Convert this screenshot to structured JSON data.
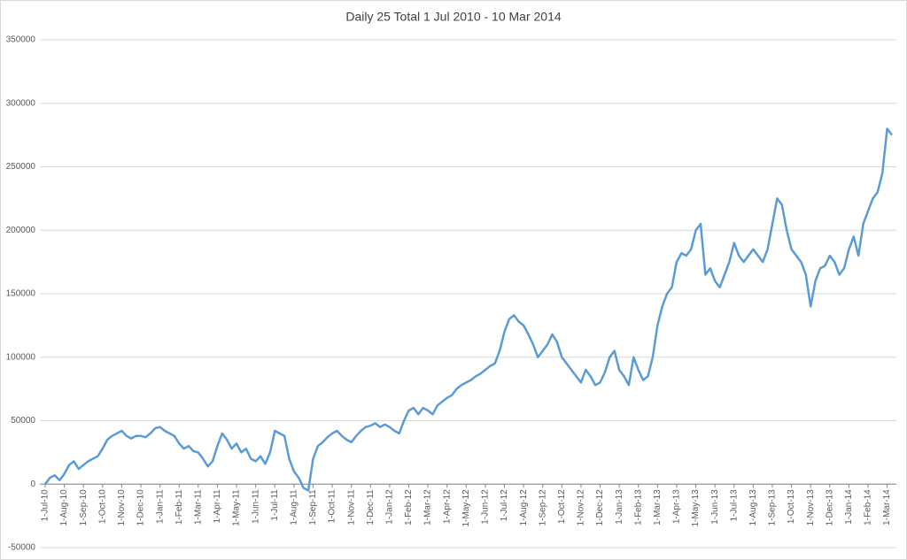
{
  "chart_data": {
    "type": "line",
    "title": "Daily 25 Total 1 Jul 2010 - 10 Mar 2014",
    "categories": [
      "1-Jul-10",
      null,
      null,
      null,
      "1-Aug-10",
      null,
      null,
      null,
      "1-Sep-10",
      null,
      null,
      null,
      "1-Oct-10",
      null,
      null,
      null,
      "1-Nov-10",
      null,
      null,
      null,
      "1-Dec-10",
      null,
      null,
      null,
      "1-Jan-11",
      null,
      null,
      null,
      "1-Feb-11",
      null,
      null,
      null,
      "1-Mar-11",
      null,
      null,
      null,
      "1-Apr-11",
      null,
      null,
      null,
      "1-May-11",
      null,
      null,
      null,
      "1-Jun-11",
      null,
      null,
      null,
      "1-Jul-11",
      null,
      null,
      null,
      "1-Aug-11",
      null,
      null,
      null,
      "1-Sep-11",
      null,
      null,
      null,
      "1-Oct-11",
      null,
      null,
      null,
      "1-Nov-11",
      null,
      null,
      null,
      "1-Dec-11",
      null,
      null,
      null,
      "1-Jan-12",
      null,
      null,
      null,
      "1-Feb-12",
      null,
      null,
      null,
      "1-Mar-12",
      null,
      null,
      null,
      "1-Apr-12",
      null,
      null,
      null,
      "1-May-12",
      null,
      null,
      null,
      "1-Jun-12",
      null,
      null,
      null,
      "1-Jul-12",
      null,
      null,
      null,
      "1-Aug-12",
      null,
      null,
      null,
      "1-Sep-12",
      null,
      null,
      null,
      "1-Oct-12",
      null,
      null,
      null,
      "1-Nov-12",
      null,
      null,
      null,
      "1-Dec-12",
      null,
      null,
      null,
      "1-Jan-13",
      null,
      null,
      null,
      "1-Feb-13",
      null,
      null,
      null,
      "1-Mar-13",
      null,
      null,
      null,
      "1-Apr-13",
      null,
      null,
      null,
      "1-May-13",
      null,
      null,
      null,
      "1-Jun-13",
      null,
      null,
      null,
      "1-Jul-13",
      null,
      null,
      null,
      "1-Aug-13",
      null,
      null,
      null,
      "1-Sep-13",
      null,
      null,
      null,
      "1-Oct-13",
      null,
      null,
      null,
      "1-Nov-13",
      null,
      null,
      null,
      "1-Dec-13",
      null,
      null,
      null,
      "1-Jan-14",
      null,
      null,
      null,
      "1-Feb-14",
      null,
      null,
      null,
      "1-Mar-14",
      null
    ],
    "series": [
      {
        "color": "#5b9bd5",
        "values": [
          0,
          5000,
          7000,
          3000,
          8000,
          15000,
          18000,
          12000,
          15000,
          18000,
          20000,
          22000,
          28000,
          35000,
          38000,
          40000,
          42000,
          38000,
          36000,
          38000,
          38000,
          37000,
          40000,
          44000,
          45000,
          42000,
          40000,
          38000,
          32000,
          28000,
          30000,
          26000,
          25000,
          20000,
          14000,
          18000,
          30000,
          40000,
          35000,
          28000,
          32000,
          25000,
          28000,
          20000,
          18000,
          22000,
          16000,
          25000,
          42000,
          40000,
          38000,
          20000,
          10000,
          5000,
          -3000,
          -5000,
          20000,
          30000,
          33000,
          37000,
          40000,
          42000,
          38000,
          35000,
          33000,
          38000,
          42000,
          45000,
          46000,
          48000,
          45000,
          47000,
          45000,
          42000,
          40000,
          50000,
          58000,
          60000,
          55000,
          60000,
          58000,
          55000,
          62000,
          65000,
          68000,
          70000,
          75000,
          78000,
          80000,
          82000,
          85000,
          87000,
          90000,
          93000,
          95000,
          105000,
          120000,
          130000,
          133000,
          128000,
          125000,
          118000,
          110000,
          100000,
          105000,
          110000,
          118000,
          112000,
          100000,
          95000,
          90000,
          85000,
          80000,
          90000,
          85000,
          78000,
          80000,
          88000,
          100000,
          105000,
          90000,
          85000,
          78000,
          100000,
          90000,
          82000,
          85000,
          100000,
          125000,
          140000,
          150000,
          155000,
          175000,
          182000,
          180000,
          185000,
          200000,
          205000,
          165000,
          170000,
          160000,
          155000,
          165000,
          175000,
          190000,
          180000,
          175000,
          180000,
          185000,
          180000,
          175000,
          185000,
          205000,
          225000,
          220000,
          200000,
          185000,
          180000,
          175000,
          165000,
          140000,
          160000,
          170000,
          172000,
          180000,
          175000,
          165000,
          170000,
          185000,
          195000,
          180000,
          205000,
          215000,
          225000,
          230000,
          245000,
          280000,
          275000
        ]
      }
    ],
    "ylim": [
      -50000,
      350000
    ],
    "yticks": [
      -50000,
      0,
      50000,
      100000,
      150000,
      200000,
      250000,
      300000,
      350000
    ],
    "grid": true
  }
}
